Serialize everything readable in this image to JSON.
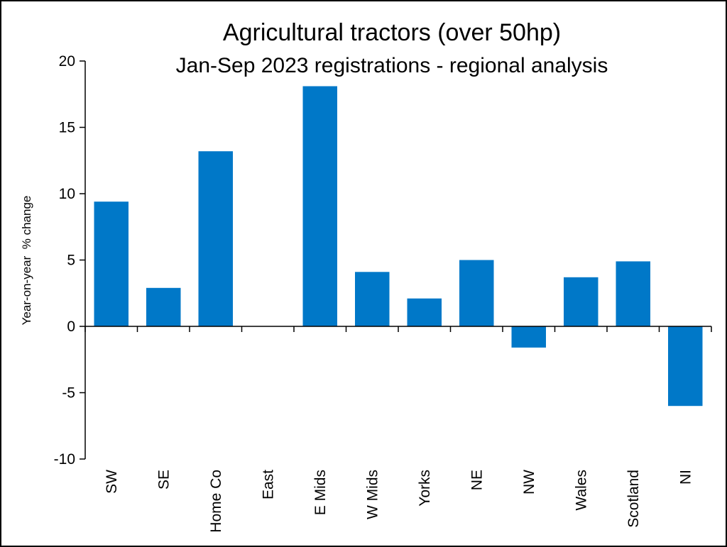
{
  "chart_data": {
    "type": "bar",
    "title": "Agricultural tractors (over 50hp)",
    "subtitle": "Jan-Sep 2023 registrations - regional analysis",
    "xlabel": "",
    "ylabel": "Year-on-year  % change",
    "ylim": [
      -10,
      20
    ],
    "yticks": [
      "20",
      "15",
      "10",
      "5",
      "0",
      "-5",
      "-10"
    ],
    "ytick_values": [
      20,
      15,
      10,
      5,
      0,
      -5,
      -10
    ],
    "grid": false,
    "legend": "none",
    "bar_color": "#0078C8",
    "categories": [
      "SW",
      "SE",
      "Home Co",
      "East",
      "E Mids",
      "W Mids",
      "Yorks",
      "NE",
      "NW",
      "Wales",
      "Scotland",
      "NI"
    ],
    "values": [
      9.4,
      2.9,
      13.2,
      0,
      18.1,
      4.1,
      2.1,
      5.0,
      -1.6,
      3.7,
      4.9,
      -6.0
    ]
  }
}
